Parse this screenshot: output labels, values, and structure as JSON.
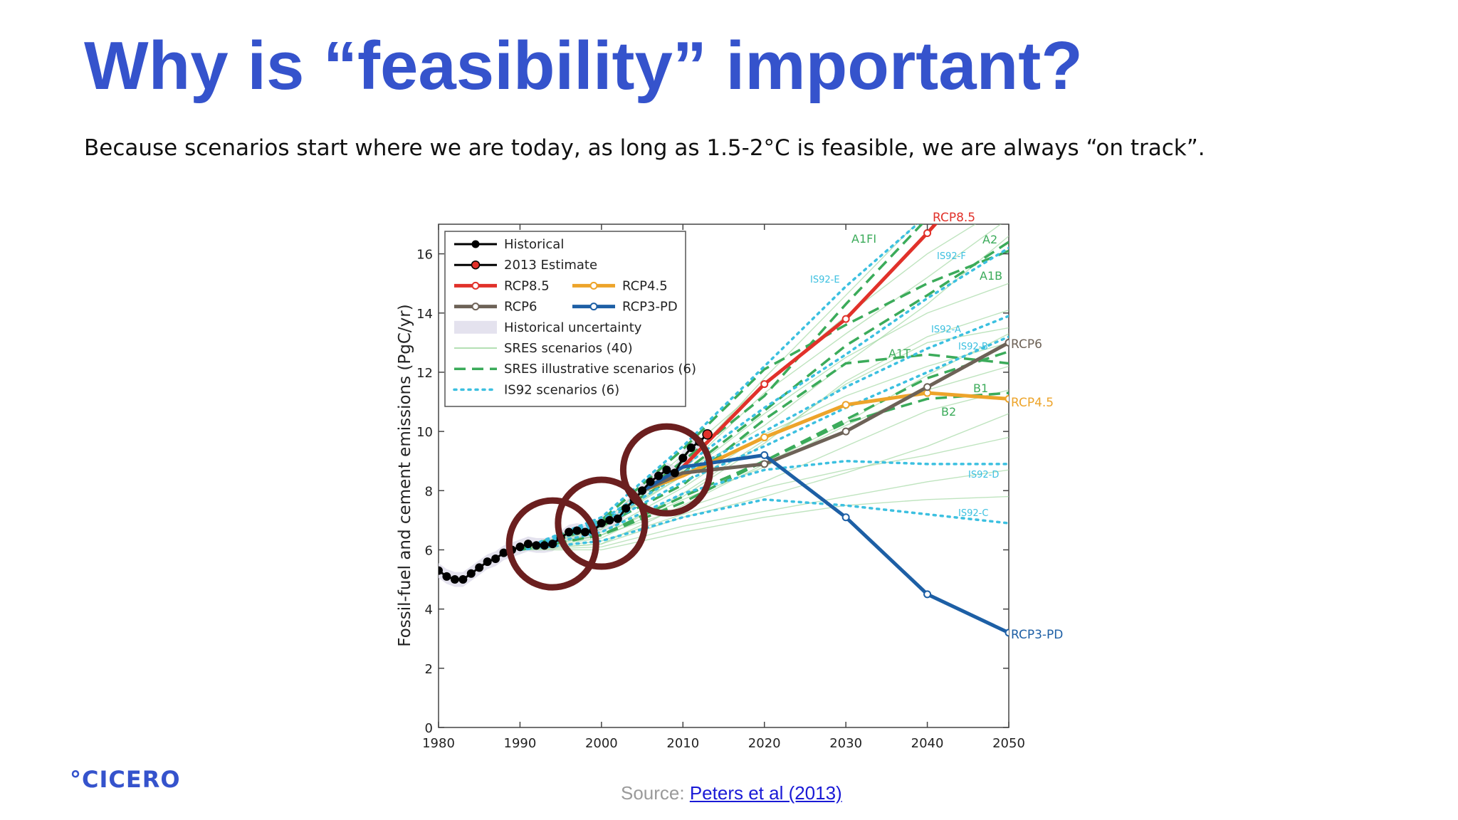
{
  "slide": {
    "title": "Why is “feasibility” important?",
    "subtitle": "Because scenarios start where we are today, as long as 1.5-2°C is feasible, we are always “on track”.",
    "logo": "°CICERO",
    "source_prefix": "Source: ",
    "source_link": "Peters et al (2013)"
  },
  "colors": {
    "title": "#3553cc",
    "historical": "#000000",
    "rcp85": "#e1312a",
    "rcp45": "#eda42a",
    "rcp6": "#6d6257",
    "rcp3pd": "#1d5fa5",
    "sres": "#9cd59c",
    "sres_illustrative": "#3bab5a",
    "is92": "#3cc0e0",
    "highlight_circle": "#6b1f1f"
  },
  "chart_data": {
    "type": "line",
    "ylabel": "Fossil-fuel and cement emissions (PgC/yr)",
    "xlim": [
      1980,
      2050
    ],
    "ylim": [
      0,
      17
    ],
    "x_ticks": [
      1980,
      1990,
      2000,
      2010,
      2020,
      2030,
      2040,
      2050
    ],
    "y_ticks": [
      0,
      2,
      4,
      6,
      8,
      10,
      12,
      14,
      16
    ],
    "legend": [
      {
        "label": "Historical",
        "key": "historical"
      },
      {
        "label": "2013 Estimate",
        "key": "estimate"
      },
      {
        "label": "RCP8.5",
        "key": "rcp85"
      },
      {
        "label": "RCP4.5",
        "key": "rcp45"
      },
      {
        "label": "RCP6",
        "key": "rcp6"
      },
      {
        "label": "RCP3-PD",
        "key": "rcp3pd"
      },
      {
        "label": "Historical uncertainty",
        "key": "uncertainty"
      },
      {
        "label": "SRES scenarios (40)",
        "key": "sres"
      },
      {
        "label": "SRES illustrative scenarios (6)",
        "key": "sres_illustrative"
      },
      {
        "label": "IS92 scenarios (6)",
        "key": "is92"
      }
    ],
    "historical": {
      "x": [
        1980,
        1981,
        1982,
        1983,
        1984,
        1985,
        1986,
        1987,
        1988,
        1989,
        1990,
        1991,
        1992,
        1993,
        1994,
        1995,
        1996,
        1997,
        1998,
        1999,
        2000,
        2001,
        2002,
        2003,
        2004,
        2005,
        2006,
        2007,
        2008,
        2009,
        2010,
        2011,
        2012
      ],
      "y": [
        5.3,
        5.1,
        5.0,
        5.0,
        5.2,
        5.4,
        5.6,
        5.7,
        5.9,
        6.0,
        6.1,
        6.2,
        6.15,
        6.15,
        6.2,
        6.4,
        6.6,
        6.65,
        6.6,
        6.65,
        6.9,
        7.0,
        7.05,
        7.4,
        7.7,
        8.0,
        8.3,
        8.5,
        8.7,
        8.6,
        9.1,
        9.45,
        9.65
      ]
    },
    "estimate_2013": {
      "x": [
        2013
      ],
      "y": [
        9.9
      ]
    },
    "rcp": [
      {
        "name": "RCP8.5",
        "key": "rcp85",
        "x": [
          2005,
          2010,
          2020,
          2030,
          2040,
          2050
        ],
        "y": [
          8.0,
          8.8,
          11.6,
          13.8,
          16.7,
          19.8
        ]
      },
      {
        "name": "RCP4.5",
        "key": "rcp45",
        "x": [
          2005,
          2010,
          2020,
          2030,
          2040,
          2050
        ],
        "y": [
          8.0,
          8.5,
          9.8,
          10.9,
          11.3,
          11.1
        ]
      },
      {
        "name": "RCP6",
        "key": "rcp6",
        "x": [
          2005,
          2010,
          2020,
          2030,
          2040,
          2050
        ],
        "y": [
          8.0,
          8.6,
          8.9,
          10.0,
          11.5,
          13.0
        ]
      },
      {
        "name": "RCP3-PD",
        "key": "rcp3pd",
        "x": [
          2005,
          2010,
          2020,
          2030,
          2040,
          2050
        ],
        "y": [
          8.0,
          8.8,
          9.2,
          7.1,
          4.5,
          3.2
        ]
      }
    ],
    "sres_illustrative": [
      {
        "name": "A1FI",
        "x": [
          1990,
          2000,
          2010,
          2020,
          2030,
          2040,
          2050
        ],
        "y": [
          6.0,
          6.9,
          9.0,
          11.2,
          14.3,
          17.2,
          20.0
        ]
      },
      {
        "name": "A2",
        "x": [
          1990,
          2000,
          2010,
          2020,
          2030,
          2040,
          2050
        ],
        "y": [
          6.0,
          7.0,
          8.6,
          10.7,
          12.9,
          14.6,
          16.4
        ]
      },
      {
        "name": "A1B",
        "x": [
          1990,
          2000,
          2010,
          2020,
          2030,
          2040,
          2050
        ],
        "y": [
          6.0,
          7.0,
          9.4,
          12.1,
          13.6,
          15.0,
          16.1
        ]
      },
      {
        "name": "A1T",
        "x": [
          1990,
          2000,
          2010,
          2020,
          2030,
          2040,
          2050
        ],
        "y": [
          6.0,
          6.8,
          8.2,
          10.4,
          12.3,
          12.6,
          12.3
        ]
      },
      {
        "name": "B1",
        "x": [
          1990,
          2000,
          2010,
          2020,
          2030,
          2040,
          2050
        ],
        "y": [
          6.0,
          6.5,
          7.6,
          9.0,
          10.4,
          11.8,
          12.7
        ]
      },
      {
        "name": "B2",
        "x": [
          1990,
          2000,
          2010,
          2020,
          2030,
          2040,
          2050
        ],
        "y": [
          6.0,
          6.5,
          7.8,
          9.0,
          10.3,
          11.1,
          11.3
        ]
      }
    ],
    "is92": [
      {
        "name": "IS92-E",
        "x": [
          1990,
          2000,
          2010,
          2020,
          2030,
          2040,
          2050
        ],
        "y": [
          6.0,
          7.1,
          9.5,
          12.2,
          14.9,
          17.3,
          19.5
        ]
      },
      {
        "name": "IS92-F",
        "x": [
          1990,
          2000,
          2010,
          2020,
          2030,
          2040,
          2050
        ],
        "y": [
          6.0,
          7.0,
          8.8,
          10.8,
          12.6,
          14.5,
          16.2
        ]
      },
      {
        "name": "IS92-A",
        "x": [
          1990,
          2000,
          2010,
          2020,
          2030,
          2040,
          2050
        ],
        "y": [
          6.0,
          6.9,
          8.6,
          10.0,
          11.5,
          12.8,
          13.9
        ]
      },
      {
        "name": "IS92-B",
        "x": [
          1990,
          2000,
          2010,
          2020,
          2030,
          2040,
          2050
        ],
        "y": [
          6.0,
          6.8,
          8.3,
          9.5,
          10.8,
          12.0,
          13.2
        ]
      },
      {
        "name": "IS92-D",
        "x": [
          1990,
          2000,
          2010,
          2020,
          2030,
          2040,
          2050
        ],
        "y": [
          6.0,
          6.6,
          7.9,
          8.7,
          9.0,
          8.9,
          8.9
        ]
      },
      {
        "name": "IS92-C",
        "x": [
          1990,
          2000,
          2010,
          2020,
          2030,
          2040,
          2050
        ],
        "y": [
          6.0,
          6.3,
          7.1,
          7.7,
          7.5,
          7.2,
          6.9
        ]
      }
    ],
    "sres_background": [
      [
        6.0,
        6.9,
        9.2,
        11.6,
        13.9,
        16.0,
        17.7
      ],
      [
        6.0,
        6.7,
        8.7,
        11.3,
        13.3,
        15.2,
        17.2
      ],
      [
        6.0,
        6.9,
        8.5,
        10.2,
        12.3,
        14.3,
        16.6
      ],
      [
        6.0,
        6.8,
        8.5,
        10.6,
        12.5,
        14.0,
        15.0
      ],
      [
        6.0,
        6.5,
        7.8,
        9.6,
        11.7,
        13.2,
        14.1
      ],
      [
        6.0,
        6.5,
        7.9,
        9.7,
        11.6,
        13.0,
        13.5
      ],
      [
        6.0,
        6.4,
        7.7,
        8.8,
        10.2,
        11.4,
        12.2
      ],
      [
        6.0,
        6.5,
        7.4,
        8.3,
        9.5,
        10.7,
        11.4
      ],
      [
        6.0,
        6.2,
        7.1,
        7.8,
        8.6,
        9.5,
        10.6
      ],
      [
        6.0,
        6.3,
        7.2,
        8.1,
        8.7,
        9.2,
        9.8
      ],
      [
        6.0,
        6.1,
        6.8,
        7.3,
        7.8,
        8.3,
        8.7
      ],
      [
        6.0,
        6.0,
        6.6,
        7.1,
        7.5,
        7.7,
        7.8
      ],
      [
        6.0,
        6.2,
        7.5,
        8.9,
        10.3,
        11.9,
        13.3
      ],
      [
        6.0,
        6.6,
        8.1,
        9.9,
        11.2,
        12.2,
        13.0
      ],
      [
        6.0,
        6.7,
        8.8,
        11.8,
        14.6,
        17.4,
        20.0
      ]
    ],
    "circles": [
      1994,
      2000,
      2008
    ]
  }
}
